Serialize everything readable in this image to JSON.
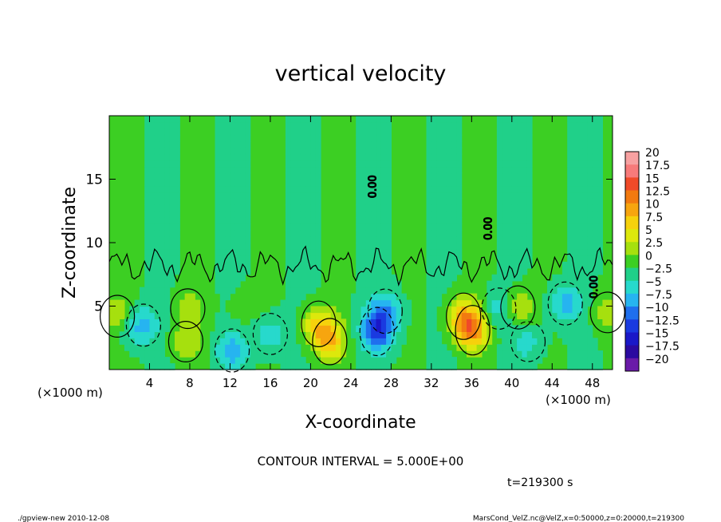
{
  "chart_data": {
    "type": "heatmap",
    "title": "vertical velocity",
    "xlabel": "X-coordinate",
    "ylabel": "Z-coordinate",
    "x_unit_left": "(×1000 m)",
    "x_unit_right": "(×1000 m)",
    "xlim": [
      0,
      50
    ],
    "ylim": [
      0,
      20
    ],
    "x_ticks": [
      4,
      8,
      12,
      16,
      20,
      24,
      28,
      32,
      36,
      40,
      44,
      48
    ],
    "y_ticks": [
      5,
      10,
      15
    ],
    "colorbar": {
      "labels": [
        "20",
        "17.5",
        "15",
        "12.5",
        "10",
        "7.5",
        "5",
        "2.5",
        "0",
        "−2.5",
        "−5",
        "−7.5",
        "−10",
        "−12.5",
        "−15",
        "−17.5",
        "−20"
      ],
      "colors": [
        "#f7a1a1",
        "#f77a7a",
        "#f04a28",
        "#f27a10",
        "#f7a50f",
        "#f6d10c",
        "#dde80c",
        "#a6e00e",
        "#3ccf23",
        "#20d089",
        "#27d9cc",
        "#26b4f0",
        "#1f6fee",
        "#1a3ae0",
        "#1a18c8",
        "#2b0aa0",
        "#6a1aa8"
      ]
    },
    "contour_interval": "CONTOUR INTERVAL = 5.000E+00",
    "zero_label": "0.00",
    "blobs": [
      {
        "x": 0.8,
        "z": 4.2,
        "w": 5.0
      },
      {
        "x": 1.8,
        "z": 3.5,
        "w": -2.8
      },
      {
        "x": 3.4,
        "z": 3.5,
        "w": -5.2
      },
      {
        "x": 7.8,
        "z": 4.8,
        "w": 3.2
      },
      {
        "x": 7.6,
        "z": 2.2,
        "w": 4.0
      },
      {
        "x": 12.2,
        "z": 1.5,
        "w": -6.0
      },
      {
        "x": 16.0,
        "z": 2.8,
        "w": -4.5
      },
      {
        "x": 20.8,
        "z": 3.6,
        "w": 8.0
      },
      {
        "x": 21.9,
        "z": 2.2,
        "w": 8.5
      },
      {
        "x": 13.4,
        "z": 5.0,
        "w": 2.0
      },
      {
        "x": 26.6,
        "z": 3.0,
        "w": -10.0
      },
      {
        "x": 27.4,
        "z": 4.6,
        "w": -7.0
      },
      {
        "x": 35.2,
        "z": 4.2,
        "w": 8.5
      },
      {
        "x": 36.1,
        "z": 3.1,
        "w": 11.0
      },
      {
        "x": 38.7,
        "z": 4.8,
        "w": -4.5
      },
      {
        "x": 40.6,
        "z": 4.9,
        "w": 6.0
      },
      {
        "x": 41.6,
        "z": 2.2,
        "w": -3.5
      },
      {
        "x": 45.3,
        "z": 5.2,
        "w": -6.0
      },
      {
        "x": 49.5,
        "z": 4.5,
        "w": 4.0
      }
    ]
  },
  "time_label": "t=219300 s",
  "footer_left": "./gpview-new   2010-12-08",
  "footer_right": "MarsCond_VelZ.nc@VelZ,x=0:50000,z=0:20000,t=219300"
}
